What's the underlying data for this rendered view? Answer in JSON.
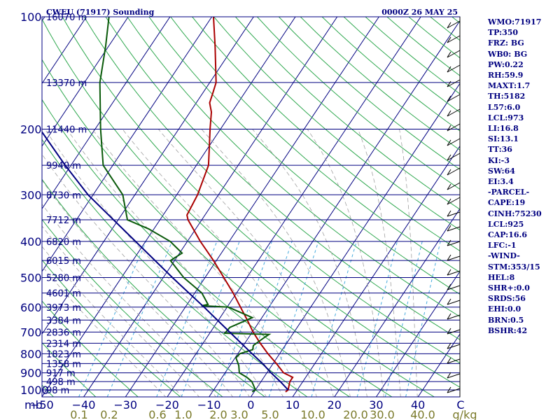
{
  "header": {
    "title": "CWEU (71917) Sounding",
    "datetime": "0000Z 26 MAY 25"
  },
  "colors": {
    "background": "#ffffff",
    "frame": "#000080",
    "isobar": "#000080",
    "isotherm": "#000080",
    "dry_adiabat": "#2fa84f",
    "moist_adiabat": "#a0a0a0",
    "mixing_ratio": "#44aadd",
    "temperature": "#aa0000",
    "dewpoint": "#0a5a0a",
    "parcel": "#000080",
    "text": "#000080",
    "mixing_label": "#7a7a2a",
    "wind": "#000000"
  },
  "chart_data": {
    "type": "skew-t",
    "title": "CWEU (71917) Sounding",
    "pressure_unit": "mb",
    "pressure_ticks": [
      100,
      200,
      300,
      400,
      500,
      600,
      700,
      800,
      900,
      1000
    ],
    "temperature_ticks": [
      -50,
      -40,
      -30,
      -20,
      -10,
      0,
      10,
      20,
      30,
      40
    ],
    "temperature_tick_labels": [
      "−50",
      "−40",
      "−30",
      "−20",
      "−10",
      "0",
      "10",
      "20",
      "30",
      "40"
    ],
    "temperature_unit": "C",
    "mixing_ratio_labels": [
      "0.1",
      "0.2",
      "0.6",
      "1.0",
      "2.0",
      "3.0",
      "5.0",
      "10.0",
      "20.0",
      "30.0",
      "40.0"
    ],
    "mixing_ratio_unit": "g/kg",
    "height_labels": [
      {
        "p": 100,
        "label": "16070 m"
      },
      {
        "p": 150,
        "label": "13370 m"
      },
      {
        "p": 200,
        "label": "11440 m"
      },
      {
        "p": 250,
        "label": "9940 m"
      },
      {
        "p": 300,
        "label": "8730 m"
      },
      {
        "p": 350,
        "label": "7712 m"
      },
      {
        "p": 400,
        "label": "6820 m"
      },
      {
        "p": 450,
        "label": "6015 m"
      },
      {
        "p": 500,
        "label": "5280 m"
      },
      {
        "p": 550,
        "label": "4601 m"
      },
      {
        "p": 600,
        "label": "3973 m"
      },
      {
        "p": 650,
        "label": "3384 m"
      },
      {
        "p": 700,
        "label": "2836 m"
      },
      {
        "p": 750,
        "label": "2314 m"
      },
      {
        "p": 800,
        "label": "1823 m"
      },
      {
        "p": 850,
        "label": "1358 m"
      },
      {
        "p": 900,
        "label": "917 m"
      },
      {
        "p": 950,
        "label": "498 m"
      },
      {
        "p": 1000,
        "label": "98 m"
      }
    ],
    "series": [
      {
        "values": [
          {
            "p": 1012,
            "t": 7.5
          },
          {
            "p": 1000,
            "t": 7.8
          },
          {
            "p": 950,
            "t": 6.9
          },
          {
            "p": 925,
            "t": 6.9
          },
          {
            "p": 900,
            "t": 4.0
          },
          {
            "p": 850,
            "t": 0.8
          },
          {
            "p": 800,
            "t": -2.8
          },
          {
            "p": 750,
            "t": -6.3
          },
          {
            "p": 700,
            "t": -9.8
          },
          {
            "p": 650,
            "t": -13.1
          },
          {
            "p": 600,
            "t": -16.8
          },
          {
            "p": 550,
            "t": -20.8
          },
          {
            "p": 500,
            "t": -25.5
          },
          {
            "p": 450,
            "t": -30.7
          },
          {
            "p": 400,
            "t": -36.9
          },
          {
            "p": 350,
            "t": -43.3
          },
          {
            "p": 340,
            "t": -44.3
          },
          {
            "p": 300,
            "t": -45.0
          },
          {
            "p": 250,
            "t": -47.1
          },
          {
            "p": 200,
            "t": -52.5
          },
          {
            "p": 180,
            "t": -54.9
          },
          {
            "p": 170,
            "t": -56.8
          },
          {
            "p": 160,
            "t": -57.6
          },
          {
            "p": 150,
            "t": -58.5
          },
          {
            "p": 120,
            "t": -64.5
          },
          {
            "p": 100,
            "t": -69.6
          }
        ]
      },
      {
        "values": [
          {
            "p": 1012,
            "t": -0.5
          },
          {
            "p": 1000,
            "t": 0.0
          },
          {
            "p": 950,
            "t": -2.2
          },
          {
            "p": 925,
            "t": -4.1
          },
          {
            "p": 900,
            "t": -6.6
          },
          {
            "p": 860,
            "t": -7.9
          },
          {
            "p": 820,
            "t": -9.8
          },
          {
            "p": 800,
            "t": -9.5
          },
          {
            "p": 780,
            "t": -7.1
          },
          {
            "p": 760,
            "t": -7.6
          },
          {
            "p": 720,
            "t": -6.1
          },
          {
            "p": 710,
            "t": -5.6
          },
          {
            "p": 705,
            "t": -16.4
          },
          {
            "p": 680,
            "t": -16.1
          },
          {
            "p": 640,
            "t": -12.3
          },
          {
            "p": 600,
            "t": -19.7
          },
          {
            "p": 595,
            "t": -26.4
          },
          {
            "p": 590,
            "t": -25.0
          },
          {
            "p": 550,
            "t": -28.3
          },
          {
            "p": 500,
            "t": -35.1
          },
          {
            "p": 450,
            "t": -41.0
          },
          {
            "p": 430,
            "t": -39.4
          },
          {
            "p": 400,
            "t": -44.1
          },
          {
            "p": 370,
            "t": -51.3
          },
          {
            "p": 350,
            "t": -57.8
          },
          {
            "p": 300,
            "t": -62.9
          },
          {
            "p": 250,
            "t": -72.3
          },
          {
            "p": 200,
            "t": -78.7
          },
          {
            "p": 150,
            "t": -86.3
          },
          {
            "p": 120,
            "t": -90.7
          },
          {
            "p": 100,
            "t": -94.6
          }
        ]
      },
      {
        "values": [
          {
            "p": 1000,
            "t": 7.8
          },
          {
            "p": 950,
            "t": 4.6
          },
          {
            "p": 900,
            "t": 1.0
          },
          {
            "p": 850,
            "t": -2.5
          },
          {
            "p": 800,
            "t": -6.6
          },
          {
            "p": 700,
            "t": -15.4
          },
          {
            "p": 600,
            "t": -25.5
          },
          {
            "p": 500,
            "t": -37.8
          },
          {
            "p": 400,
            "t": -52.4
          },
          {
            "p": 300,
            "t": -71.2
          },
          {
            "p": 250,
            "t": -81.4
          },
          {
            "p": 200,
            "t": -93.2
          },
          {
            "p": 150,
            "t": -107.9
          },
          {
            "p": 100,
            "t": -127.0
          }
        ]
      }
    ]
  },
  "indices": [
    "WMO:71917",
    "TP:350",
    "FRZ: BG",
    "WB0: BG",
    "PW:0.22",
    "RH:59.9",
    "MAXT:1.7",
    "TH:5182",
    "L57:6.0",
    "LCL:973",
    "LI:16.8",
    "SI:13.1",
    "TT:36",
    "KI:-3",
    "SW:64",
    "EI:3.4",
    "-PARCEL-",
    "CAPE:19",
    "CINH:75230",
    "LCL:925",
    "CAP:16.6",
    "LFC:-1",
    "-WIND-",
    "STM:353/15",
    "HEL:8",
    "SHR+:0.0",
    "SRDS:56",
    "EHI:0.0",
    "BRN:0.5",
    "BSHR:42"
  ]
}
